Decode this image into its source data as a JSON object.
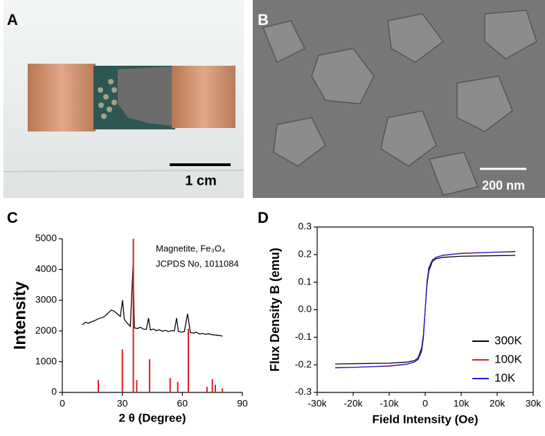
{
  "panels": [
    {
      "label": "A",
      "scale_bar": "1 cm"
    },
    {
      "label": "B",
      "scale_bar": "200 nm"
    },
    {
      "label": "C"
    },
    {
      "label": "D"
    }
  ],
  "chart_data": [
    {
      "type": "line",
      "xlabel": "2 θ (Degree)",
      "ylabel": "Intensity",
      "annotations": [
        "Magnetite, Fe₃O₄",
        "JCPDS No, 1011084"
      ],
      "xlim": [
        0,
        90
      ],
      "xticks": [
        0,
        30,
        60,
        90
      ],
      "ylim": [
        0,
        5000
      ],
      "yticks": [
        0,
        1000,
        2000,
        3000,
        4000,
        5000
      ],
      "series": [
        {
          "type": "line",
          "color": "#000000",
          "x": [
            10,
            11.5,
            13,
            14.5,
            16,
            17.5,
            19,
            20.5,
            22,
            23.5,
            24.5,
            26,
            27.5,
            29,
            30.1,
            31,
            32.5,
            34,
            35.4,
            36,
            37.5,
            39,
            40.5,
            42,
            43.1,
            44,
            45.5,
            47,
            48.5,
            50,
            51.5,
            53,
            54.5,
            56,
            57.1,
            58,
            59.5,
            61,
            62.6,
            64,
            65.5,
            67,
            68.5,
            70,
            71.5,
            73,
            74.5,
            76,
            77.5,
            79,
            80
          ],
          "values": [
            2200,
            2280,
            2250,
            2300,
            2330,
            2380,
            2420,
            2450,
            2520,
            2620,
            2680,
            2640,
            2560,
            2470,
            3000,
            2380,
            2250,
            2150,
            4200,
            2100,
            2080,
            2120,
            2060,
            2050,
            2420,
            2030,
            2060,
            2010,
            2040,
            1990,
            2020,
            1980,
            2010,
            2000,
            2420,
            1990,
            1960,
            1980,
            2560,
            1950,
            1930,
            1960,
            1900,
            1920,
            1890,
            1910,
            1880,
            1870,
            1860,
            1850,
            1830
          ]
        },
        {
          "type": "stem",
          "color": "#e31a1c",
          "x": [
            18.0,
            30.0,
            35.5,
            37.2,
            43.6,
            53.9,
            57.7,
            63.0,
            72.3,
            75.0,
            76.5,
            80.0
          ],
          "values": [
            400,
            1400,
            5000,
            400,
            1080,
            470,
            340,
            2070,
            180,
            430,
            250,
            130
          ]
        }
      ]
    },
    {
      "type": "line",
      "xlabel": "Field Intensity (Oe)",
      "ylabel": "Flux Density B (emu)",
      "legend": "lower right",
      "box": true,
      "xlim": [
        -30000,
        30000
      ],
      "xticks": [
        {
          "value": -30000,
          "label": "-30k"
        },
        {
          "value": -20000,
          "label": "-20k"
        },
        {
          "value": -10000,
          "label": "-10k"
        },
        0,
        {
          "value": 10000,
          "label": "10k"
        },
        {
          "value": 20000,
          "label": "20k"
        },
        {
          "value": 30000,
          "label": "30k"
        }
      ],
      "ylim": [
        -0.3,
        0.3
      ],
      "yticks": [
        -0.3,
        -0.2,
        -0.1,
        {
          "value": 0,
          "label": "0.0"
        },
        0.1,
        0.2,
        0.3
      ],
      "series": [
        {
          "name": "300K",
          "type": "line",
          "color": "#000000",
          "x": [
            -25000,
            -20000,
            -10000,
            -5000,
            -3000,
            -2000,
            -1000,
            -500,
            0,
            500,
            1000,
            2000,
            3000,
            5000,
            10000,
            20000,
            25000
          ],
          "values": [
            -0.197,
            -0.196,
            -0.194,
            -0.19,
            -0.185,
            -0.175,
            -0.14,
            -0.09,
            0,
            0.09,
            0.14,
            0.175,
            0.185,
            0.19,
            0.194,
            0.196,
            0.197
          ]
        },
        {
          "name": "100K",
          "type": "line",
          "color": "#e31a1c",
          "x": [
            -25000,
            -20000,
            -10000,
            -5000,
            -3000,
            -2000,
            -1000,
            -500,
            0,
            500,
            1000,
            2000,
            3000,
            5000,
            10000,
            20000,
            25000
          ],
          "values": [
            -0.21,
            -0.209,
            -0.205,
            -0.198,
            -0.19,
            -0.18,
            -0.15,
            -0.1,
            0,
            0.1,
            0.15,
            0.18,
            0.19,
            0.198,
            0.205,
            0.209,
            0.21
          ]
        },
        {
          "name": "10K",
          "type": "line",
          "color": "#1f1fd6",
          "x": [
            -25000,
            -20000,
            -10000,
            -5000,
            -3000,
            -2000,
            -1000,
            -500,
            0,
            500,
            1000,
            2000,
            3000,
            5000,
            10000,
            20000,
            25000
          ],
          "values": [
            -0.211,
            -0.209,
            -0.204,
            -0.197,
            -0.19,
            -0.181,
            -0.152,
            -0.102,
            0,
            0.102,
            0.152,
            0.181,
            0.19,
            0.197,
            0.204,
            0.209,
            0.211
          ]
        }
      ]
    }
  ]
}
